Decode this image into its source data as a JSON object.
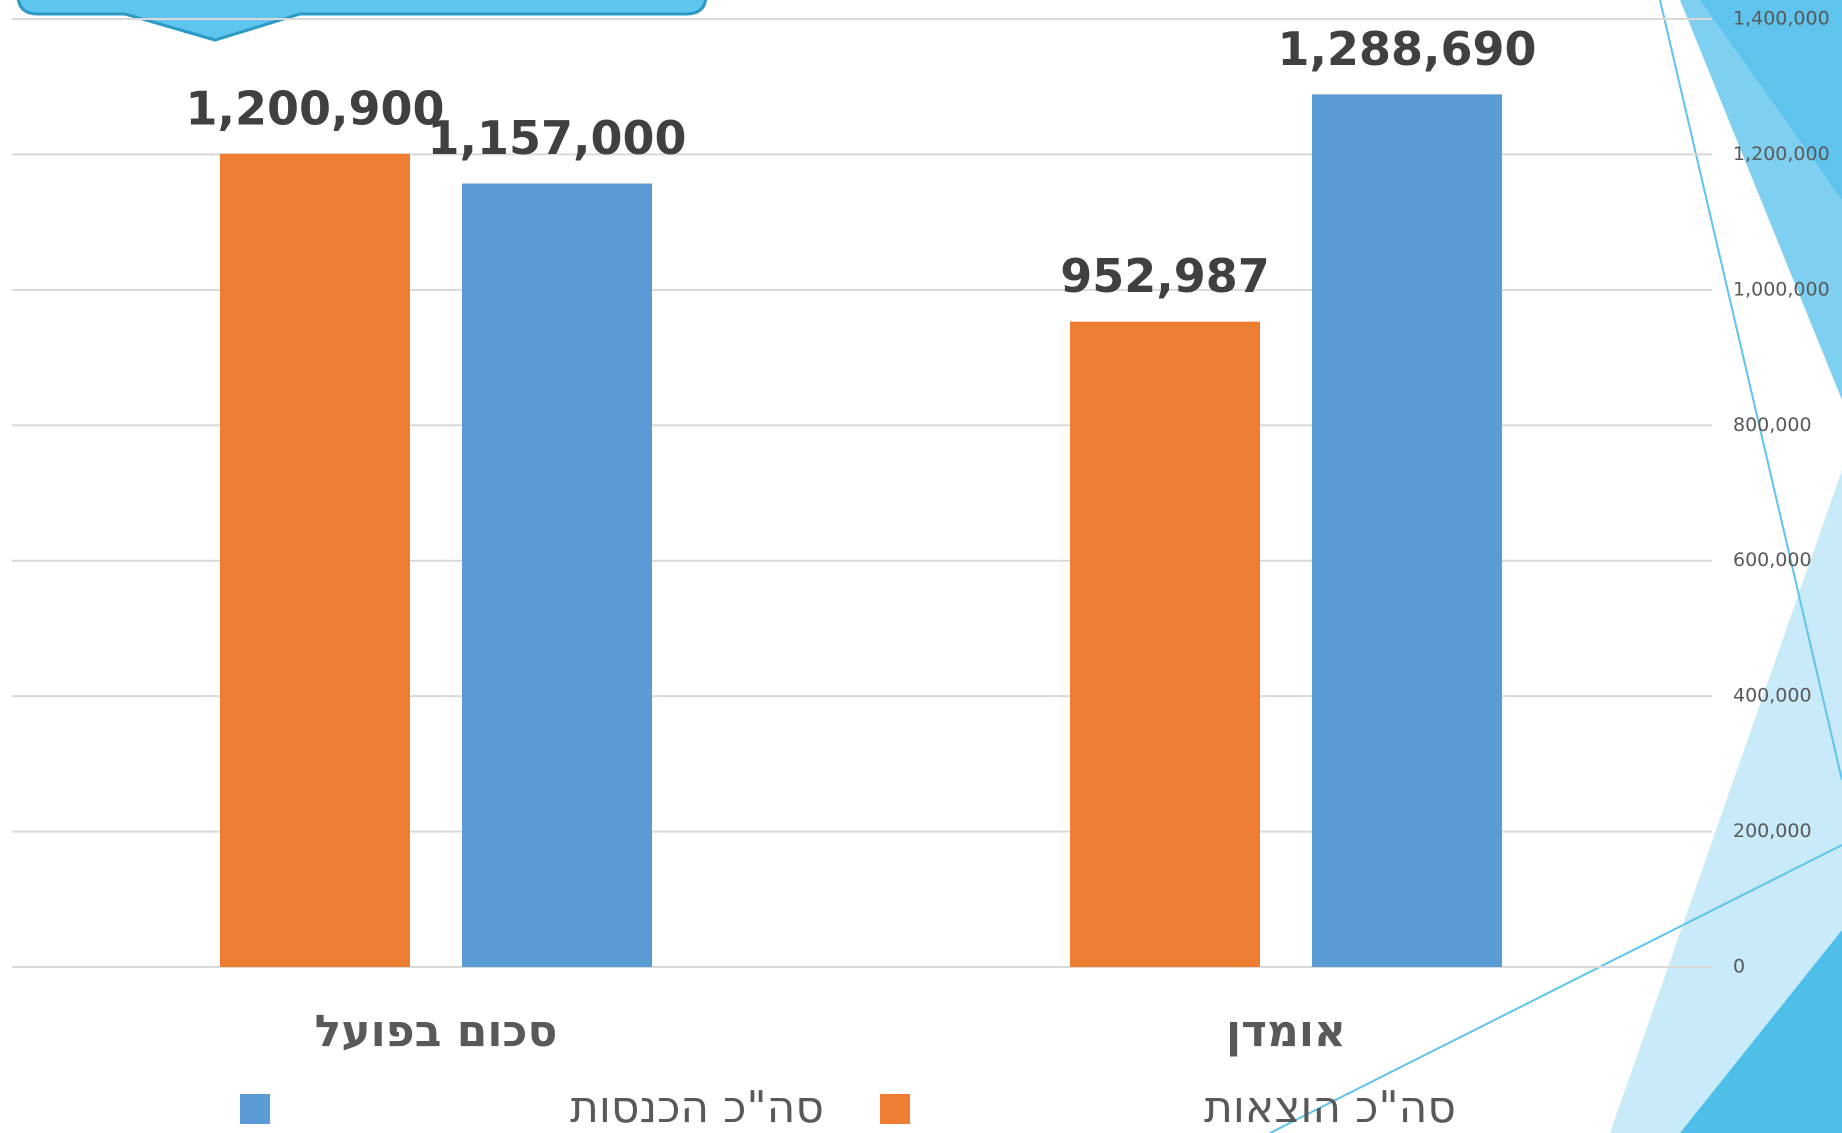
{
  "chart_data": {
    "type": "bar",
    "categories": [
      "אומדן",
      "סכום בפועל"
    ],
    "series": [
      {
        "name": "סה\"כ הוצאות",
        "color": "#ed7d31",
        "values": [
          952987,
          1200900
        ],
        "value_labels": [
          "952,987",
          "1,200,900"
        ]
      },
      {
        "name": "סה\"כ הכנסות",
        "color": "#5b9bd5",
        "values": [
          1288690,
          1157000
        ],
        "value_labels": [
          "1,288,690",
          "1,157,000"
        ]
      }
    ],
    "ylim": [
      0,
      1400000
    ],
    "yticks": [
      0,
      {
        "value": 200000,
        "label": "200,000"
      },
      {
        "value": 400000,
        "label": "400,000"
      },
      {
        "value": 600000,
        "label": "600,000"
      },
      {
        "value": 800000,
        "label": "800,000"
      },
      {
        "value": 1000000,
        "label": "1,000,000"
      },
      {
        "value": 1200000,
        "label": "1,200,000"
      },
      {
        "value": 1400000,
        "label": "1,400,000"
      }
    ],
    "grid": true
  }
}
